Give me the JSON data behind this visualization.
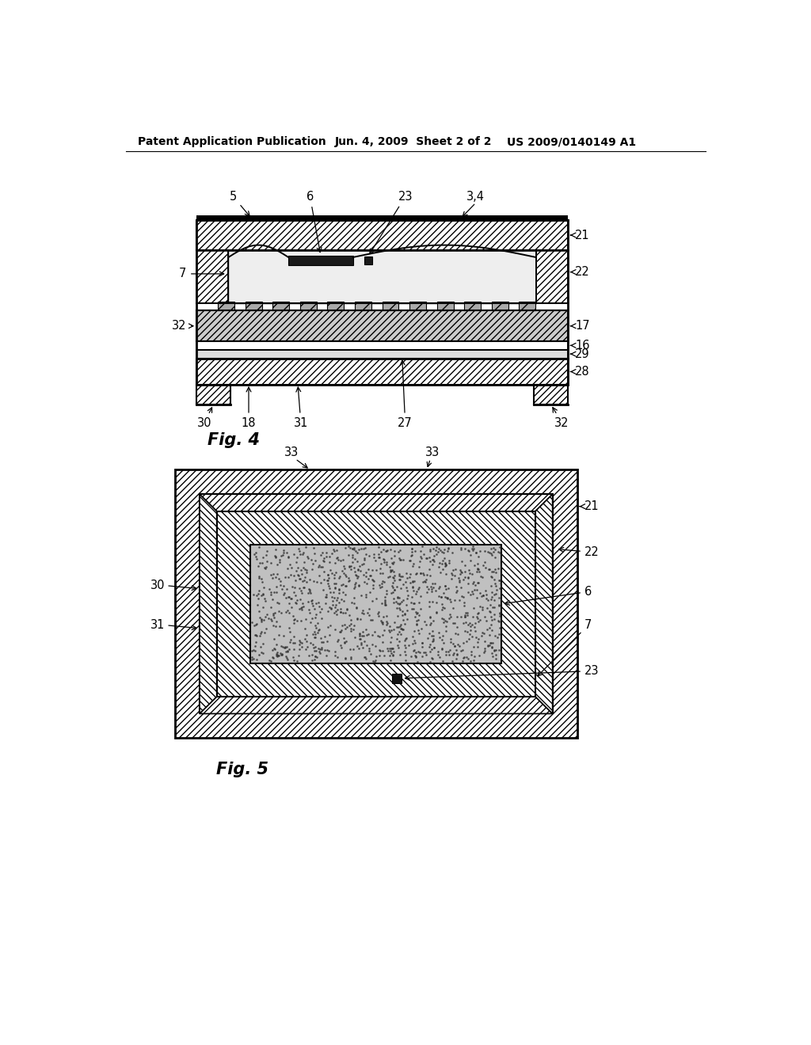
{
  "header_left": "Patent Application Publication",
  "header_center": "Jun. 4, 2009  Sheet 2 of 2",
  "header_right": "US 2009/0140149 A1",
  "fig4_label": "Fig. 4",
  "fig5_label": "Fig. 5",
  "bg_color": "#ffffff"
}
